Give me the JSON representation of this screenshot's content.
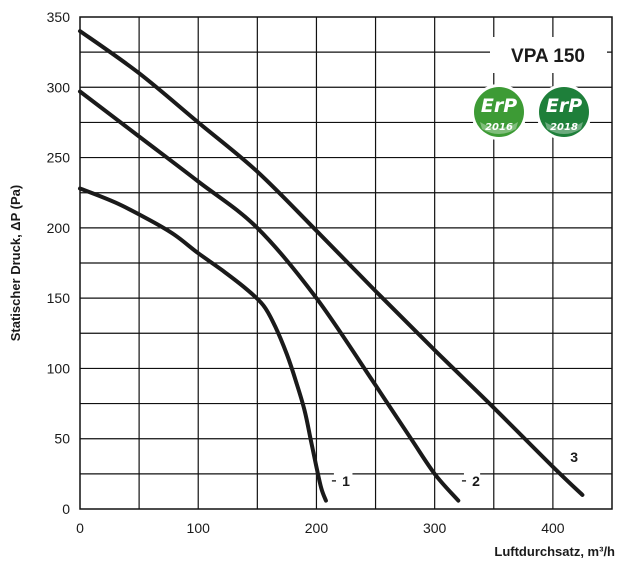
{
  "chart_data": {
    "type": "line",
    "title": "VPA 150",
    "xlabel": "Luftdurchsatz, m³/h",
    "ylabel": "Statischer Druck, ΔP (Pa)",
    "xlim": [
      0,
      450
    ],
    "ylim": [
      0,
      350
    ],
    "x_ticks": [
      "0",
      "100",
      "200",
      "300",
      "400"
    ],
    "y_ticks": [
      "0",
      "50",
      "100",
      "150",
      "200",
      "250",
      "300",
      "350"
    ],
    "grid": true,
    "badges": [
      {
        "text": "ErP",
        "year": "2016",
        "color": "#3d9b35"
      },
      {
        "text": "ErP",
        "year": "2018",
        "color": "#1e7f3a"
      }
    ],
    "series": [
      {
        "name": "1",
        "x": [
          0,
          30,
          60,
          80,
          100,
          120,
          140,
          155,
          165,
          175,
          183,
          190,
          195,
          200,
          204,
          208
        ],
        "y": [
          228,
          218,
          205,
          195,
          182,
          170,
          157,
          145,
          130,
          110,
          90,
          70,
          50,
          30,
          15,
          6
        ]
      },
      {
        "name": "2",
        "x": [
          0,
          50,
          100,
          150,
          200,
          250,
          280,
          300,
          320
        ],
        "y": [
          297,
          265,
          233,
          200,
          150,
          88,
          50,
          25,
          6
        ]
      },
      {
        "name": "3",
        "x": [
          0,
          50,
          100,
          150,
          200,
          250,
          300,
          350,
          400,
          425
        ],
        "y": [
          340,
          310,
          275,
          240,
          198,
          155,
          113,
          72,
          30,
          10
        ]
      }
    ]
  }
}
